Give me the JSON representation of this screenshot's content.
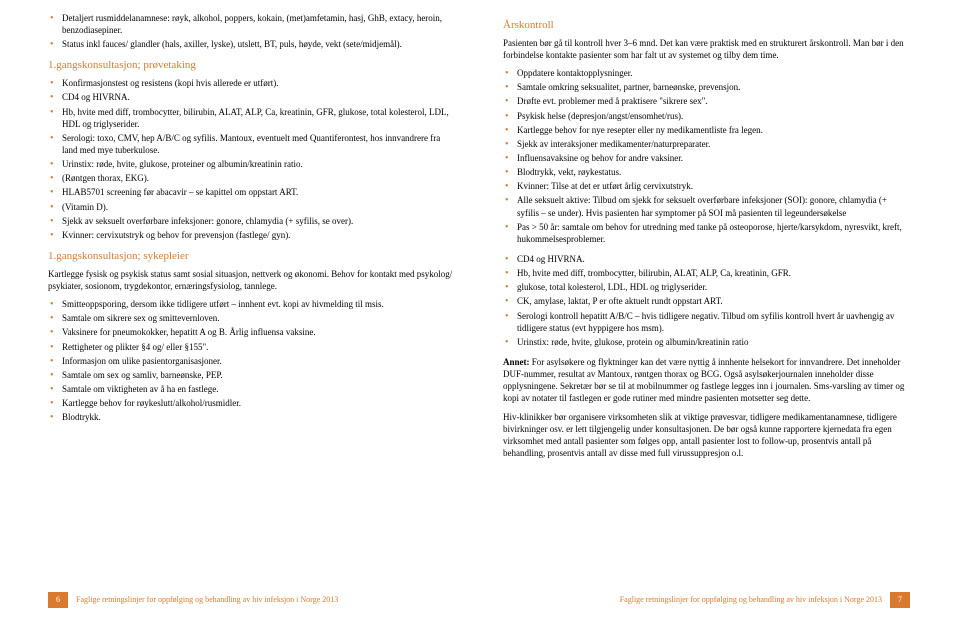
{
  "colors": {
    "accent": "#d97a2e",
    "text": "#000000",
    "bullet": "#d97a2e",
    "footer_bg": "#d97a2e",
    "footer_text": "#ffffff"
  },
  "typography": {
    "body_fontsize": 9,
    "heading_fontsize": 11,
    "footer_fontsize": 8,
    "line_height": 1.35,
    "font_family": "Georgia, serif"
  },
  "left": {
    "topList": [
      "Detaljert rusmiddelanamnese: røyk, alkohol, poppers, kokain, (met)amfetamin, hasj, GhB, extacy, heroin, benzodiasepiner.",
      "Status inkl fauces/ glandler (hals, axiller, lyske), utslett, BT, puls, høyde, vekt (sete/midjemål)."
    ],
    "heading1": "1.gangskonsultasjon; prøvetaking",
    "list1": [
      "Konfirmasjonstest og resistens (kopi hvis allerede er utført).",
      "CD4 og HIVRNA.",
      "Hb, hvite med diff, trombocytter, bilirubin, ALAT, ALP, Ca, kreatinin, GFR, glukose, total kolesterol, LDL, HDL og triglyserider.",
      "Serologi: toxo, CMV, hep A/B/C og syfilis. Mantoux, eventuelt med Quantiferontest, hos innvandrere fra land med mye tuberkulose.",
      "Urinstix: røde, hvite, glukose, proteiner og albumin/kreatinin ratio.",
      "(Røntgen thorax, EKG).",
      "HLAB5701 screening før abacavir – se kapittel om oppstart ART.",
      "(Vitamin D).",
      "Sjekk av seksuelt overførbare infeksjoner: gonore, chlamydia (+ syfilis, se over).",
      "Kvinner: cervixutstryk og behov for prevensjon (fastlege/ gyn)."
    ],
    "heading2": "1.gangskonsultasjon; sykepleier",
    "intro2": "Kartlegge fysisk og psykisk status samt sosial situasjon, nettverk og økonomi. Behov for kontakt med psykolog/ psykiater, sosionom, trygdekontor, ernæringsfysiolog, tannlege.",
    "list2": [
      "Smitteoppsporing, dersom ikke tidligere utført – innhent evt. kopi av hivmelding til msis.",
      "Samtale om sikrere sex og smittevernloven.",
      "Vaksinere for pneumokokker, hepatitt A og B. Årlig influensa vaksine.",
      "Rettigheter og plikter §4 og/ eller §155\".",
      "Informasjon om ulike pasientorganisasjoner.",
      "Samtale om sex og samliv, barneønske, PEP.",
      "Samtale om viktigheten av å ha en fastlege.",
      "Kartlegge behov for røykeslutt/alkohol/rusmidler.",
      "Blodtrykk."
    ],
    "footer_num": "6",
    "footer_title": "Faglige retningslinjer for oppfølging og behandling av hiv infeksjon i Norge 2013"
  },
  "right": {
    "heading1": "Årskontroll",
    "intro1": "Pasienten bør gå til kontroll hver 3–6 mnd. Det kan være praktisk med en strukturert årskontroll. Man bør i den forbindelse kontakte pasienter som har falt ut av systemet og tilby dem time.",
    "list1": [
      "Oppdatere kontaktopplysninger.",
      "Samtale omkring seksualitet, partner, barneønske, prevensjon.",
      "Drøfte evt. problemer med å praktisere \"sikrere sex\".",
      "Psykisk helse (depresjon/angst/ensomhet/rus).",
      "Kartlegge behov for nye resepter eller ny medikamentliste fra legen.",
      "Sjekk av interaksjoner medikamenter/naturpreparater.",
      "Influensavaksine og behov for andre vaksiner.",
      "Blodtrykk, vekt, røykestatus.",
      "Kvinner: Tilse at det er utført årlig cervixutstryk.",
      "Alle seksuelt aktive: Tilbud om sjekk for seksuelt overførbare infeksjoner (SOI): gonore, chlamydia (+ syfilis – se under). Hvis pasienten har symptomer på SOI må pasienten til legeundersøkelse",
      "Pas > 50 år: samtale om behov for utredning med tanke på osteoporose, hjerte/karsykdom, nyresvikt, kreft, hukommelsesproblemer."
    ],
    "list2": [
      "CD4 og HIVRNA.",
      "Hb, hvite med diff, trombocytter, bilirubin, ALAT, ALP, Ca, kreatinin, GFR.",
      "glukose, total kolesterol, LDL, HDL og triglyserider.",
      "CK, amylase, laktat, P er ofte aktuelt rundt oppstart ART.",
      "Serologi kontroll hepatitt A/B/C – hvis tidligere negativ. Tilbud om syfilis kontroll hvert år uavhengig av tidligere status (evt hyppigere hos msm).",
      "Urinstix: røde, hvite, glukose, protein og albumin/kreatinin ratio"
    ],
    "note_label": "Annet:",
    "note": " For asylsøkere og flyktninger kan det være nyttig å innhente helsekort for innvandrere. Det inneholder DUF-nummer, resultat av Mantoux, røntgen thorax og BCG. Også asylsøkerjournalen inneholder disse opplysningene. Sekretær bør se til at mobilnummer og fastlege legges inn i journalen. Sms-varsling av timer og kopi av notater til fastlegen er gode rutiner med mindre pasienten motsetter seg dette.",
    "para2": "Hiv-klinikker bør organisere virksomheten slik at viktige prøvesvar, tidligere medikamentanamnese, tidligere bivirkninger osv. er lett tilgjengelig under konsultasjonen. De bør også kunne rapportere kjernedata fra egen virksomhet med antall pasienter som følges opp, antall pasienter lost to follow-up, prosentvis antall på behandling, prosentvis antall av disse med full virussuppresjon o.l.",
    "footer_num": "7",
    "footer_title": "Faglige retningslinjer for oppfølging og behandling av hiv infeksjon i Norge 2013"
  }
}
